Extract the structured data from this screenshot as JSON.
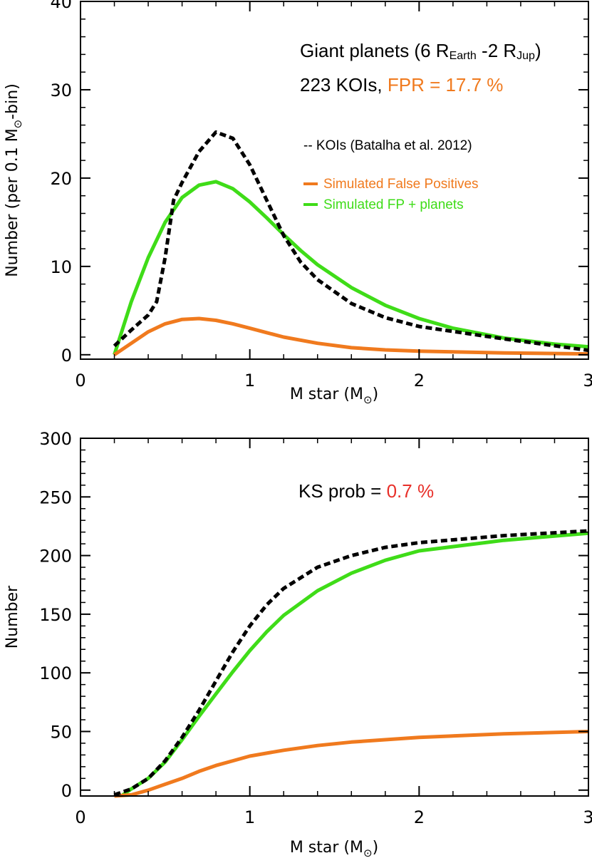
{
  "colors": {
    "koi": "#000000",
    "fp": "#f07a1e",
    "fp_planets": "#3fdc18",
    "highlight": "#f07a1e",
    "ks_highlight": "#e8302a"
  },
  "chart_data": [
    {
      "type": "line",
      "xlabel": "M star (M",
      "xlabel_sub": "⊙",
      "xlabel_close": ")",
      "ylabel": "Number (per 0.1 M",
      "ylabel_sub": "⊙",
      "ylabel_tail": "-bin)",
      "xlim": [
        0,
        3
      ],
      "ylim": [
        -0.5,
        40
      ],
      "xticks": [
        "0",
        "1",
        "2",
        "3"
      ],
      "yticks": [
        "0",
        "10",
        "20",
        "30",
        "40"
      ],
      "annotations": {
        "title_main": "Giant planets (6 R",
        "title_sub1": "Earth",
        "title_mid": " -2 R",
        "title_sub2": "Jup",
        "title_close": ")",
        "count_text": "223 KOIs, ",
        "fpr_text": "FPR = 17.7 %"
      },
      "legend": [
        {
          "key": "koi",
          "label": "-- KOIs (Batalha et al. 2012)"
        },
        {
          "key": "fp",
          "label": "Simulated False Positives"
        },
        {
          "key": "fp_planets",
          "label": "Simulated FP + planets"
        }
      ],
      "series": [
        {
          "name": "KOIs (Batalha et al. 2012)",
          "key": "koi",
          "style": "dashed",
          "x": [
            0.2,
            0.3,
            0.4,
            0.45,
            0.5,
            0.55,
            0.6,
            0.7,
            0.8,
            0.9,
            1.0,
            1.1,
            1.2,
            1.3,
            1.4,
            1.6,
            1.8,
            2.0,
            2.5,
            3.0
          ],
          "y": [
            1.0,
            2.8,
            4.5,
            6.0,
            11.0,
            17.5,
            19.5,
            23.0,
            25.2,
            24.5,
            21.5,
            17.5,
            13.5,
            10.5,
            8.5,
            5.8,
            4.2,
            3.2,
            1.8,
            0.5
          ]
        },
        {
          "name": "Simulated False Positives",
          "key": "fp",
          "style": "solid",
          "x": [
            0.2,
            0.3,
            0.4,
            0.5,
            0.6,
            0.7,
            0.8,
            0.9,
            1.0,
            1.1,
            1.2,
            1.4,
            1.6,
            1.8,
            2.0,
            2.5,
            3.0
          ],
          "y": [
            0.0,
            1.3,
            2.6,
            3.5,
            4.0,
            4.1,
            3.9,
            3.5,
            3.0,
            2.5,
            2.0,
            1.3,
            0.8,
            0.55,
            0.4,
            0.2,
            0.1
          ]
        },
        {
          "name": "Simulated FP + planets",
          "key": "fp_planets",
          "style": "solid",
          "x": [
            0.2,
            0.3,
            0.4,
            0.5,
            0.6,
            0.7,
            0.8,
            0.9,
            1.0,
            1.1,
            1.2,
            1.3,
            1.4,
            1.6,
            1.8,
            2.0,
            2.2,
            2.5,
            2.8,
            3.0
          ],
          "y": [
            0.0,
            6.0,
            11.0,
            15.0,
            17.8,
            19.2,
            19.6,
            18.8,
            17.3,
            15.5,
            13.6,
            11.8,
            10.2,
            7.6,
            5.6,
            4.1,
            3.0,
            1.9,
            1.2,
            0.9
          ]
        }
      ]
    },
    {
      "type": "line",
      "xlabel": "M star (M",
      "xlabel_sub": "⊙",
      "xlabel_close": ")",
      "ylabel": "Number",
      "xlim": [
        0,
        3
      ],
      "ylim": [
        -5,
        300
      ],
      "xticks": [
        "0",
        "1",
        "2",
        "3"
      ],
      "yticks": [
        "0",
        "50",
        "100",
        "150",
        "200",
        "250",
        "300"
      ],
      "annotations": {
        "ks_text": "KS prob = ",
        "ks_value": "0.7 %"
      },
      "series": [
        {
          "name": "KOIs (Batalha et al. 2012)",
          "key": "koi",
          "style": "dashed",
          "x": [
            0.2,
            0.3,
            0.4,
            0.5,
            0.6,
            0.7,
            0.8,
            0.9,
            1.0,
            1.1,
            1.2,
            1.4,
            1.6,
            1.8,
            2.0,
            2.5,
            3.0
          ],
          "y": [
            -4,
            1,
            10,
            25,
            45,
            68,
            93,
            118,
            140,
            158,
            172,
            190,
            200,
            207,
            211,
            217,
            221
          ]
        },
        {
          "name": "Simulated False Positives",
          "key": "fp",
          "style": "solid",
          "x": [
            0.2,
            0.3,
            0.4,
            0.5,
            0.6,
            0.7,
            0.8,
            0.9,
            1.0,
            1.2,
            1.4,
            1.6,
            1.8,
            2.0,
            2.5,
            3.0
          ],
          "y": [
            -5,
            -4,
            0,
            5,
            10,
            16,
            21,
            25,
            29,
            34,
            38,
            41,
            43,
            45,
            48,
            50
          ]
        },
        {
          "name": "Simulated FP + planets",
          "key": "fp_planets",
          "style": "solid",
          "x": [
            0.25,
            0.3,
            0.4,
            0.5,
            0.6,
            0.7,
            0.8,
            0.9,
            1.0,
            1.1,
            1.2,
            1.4,
            1.6,
            1.8,
            2.0,
            2.5,
            3.0
          ],
          "y": [
            -4,
            1,
            10,
            24,
            43,
            63,
            82,
            101,
            119,
            135,
            149,
            170,
            185,
            196,
            204,
            213,
            219
          ]
        }
      ]
    }
  ]
}
